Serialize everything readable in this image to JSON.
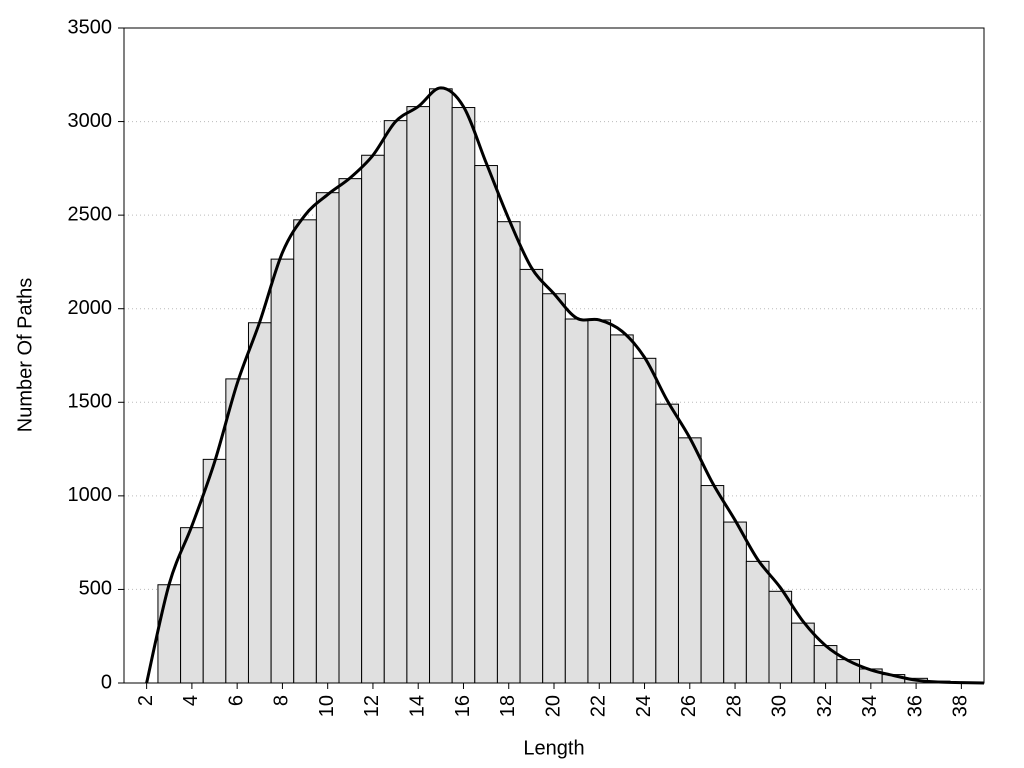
{
  "chart_data": {
    "type": "histogram",
    "x_label": "Length",
    "y_label": "Number Of Paths",
    "bins": [
      2.5,
      3.5,
      4.5,
      5.5,
      6.5,
      7.5,
      8.5,
      9.5,
      10.5,
      11.5,
      12.5,
      13.5,
      14.5,
      15.5,
      16.5,
      17.5,
      18.5,
      19.5,
      20.5,
      21.5,
      22.5,
      23.5,
      24.5,
      25.5,
      26.5,
      27.5,
      28.5,
      29.5,
      30.5,
      31.5,
      32.5,
      33.5,
      34.5,
      35.5,
      36.5,
      37.5,
      38.5
    ],
    "values": [
      525,
      830,
      1195,
      1625,
      1925,
      2265,
      2475,
      2620,
      2695,
      2820,
      3005,
      3080,
      3175,
      3075,
      2765,
      2465,
      2210,
      2080,
      1945,
      1940,
      1860,
      1735,
      1490,
      1310,
      1055,
      860,
      650,
      490,
      320,
      200,
      125,
      75,
      45,
      25,
      10,
      5
    ],
    "color": "#e0e0e0",
    "curve": {
      "color": "#000000",
      "x": [
        2,
        3,
        4,
        5,
        6,
        7,
        8,
        9,
        10,
        11,
        12,
        13,
        14,
        15,
        16,
        17,
        18,
        19,
        20,
        21,
        22,
        23,
        24,
        25,
        26,
        27,
        28,
        29,
        30,
        31,
        32,
        33,
        34,
        35,
        36,
        37,
        38,
        39
      ],
      "values": [
        0,
        530,
        840,
        1180,
        1600,
        1930,
        2300,
        2500,
        2610,
        2700,
        2820,
        3000,
        3080,
        3180,
        3080,
        2780,
        2480,
        2220,
        2080,
        1950,
        1940,
        1880,
        1740,
        1510,
        1310,
        1070,
        870,
        660,
        510,
        330,
        200,
        120,
        70,
        40,
        15,
        5,
        2,
        0
      ]
    },
    "xlim": [
      1,
      39
    ],
    "ylim": [
      0,
      3500
    ],
    "xticks": [
      2,
      4,
      6,
      8,
      10,
      12,
      14,
      16,
      18,
      20,
      22,
      24,
      26,
      28,
      30,
      32,
      34,
      36,
      38
    ],
    "yticks": [
      0,
      500,
      1000,
      1500,
      2000,
      2500,
      3000,
      3500
    ],
    "grid": true
  }
}
